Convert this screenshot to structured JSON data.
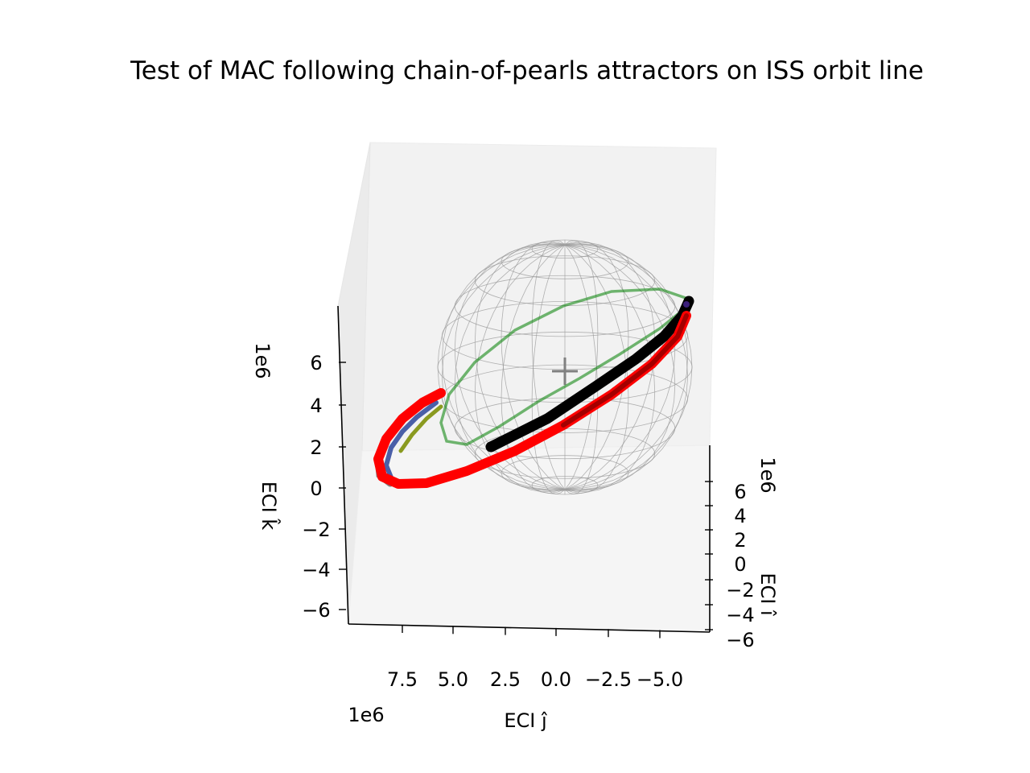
{
  "chart_data": {
    "type": "line3d",
    "title": "Test of MAC following chain-of-pearls attractors on ISS orbit line",
    "axes": {
      "x": {
        "label": "ECI î",
        "offset": "1e6",
        "ticks": [
          "−6",
          "−4",
          "−2",
          "0",
          "2",
          "4",
          "6"
        ]
      },
      "y": {
        "label": "ECI ĵ",
        "offset": "1e6",
        "ticks": [
          "7.5",
          "5.0",
          "2.5",
          "0.0",
          "−2.5",
          "−5.0"
        ]
      },
      "z": {
        "label": "ECI k̂",
        "offset": "1e6",
        "ticks": [
          "6",
          "4",
          "2",
          "0",
          "−2",
          "−4",
          "−6"
        ]
      }
    },
    "series": [
      {
        "label": "",
        "color": "#008000"
      },
      {
        "label": "",
        "color": "#ff0000"
      },
      {
        "label": "",
        "color": "#000000"
      },
      {
        "label": "",
        "color": "#808080"
      }
    ],
    "grid": false
  }
}
